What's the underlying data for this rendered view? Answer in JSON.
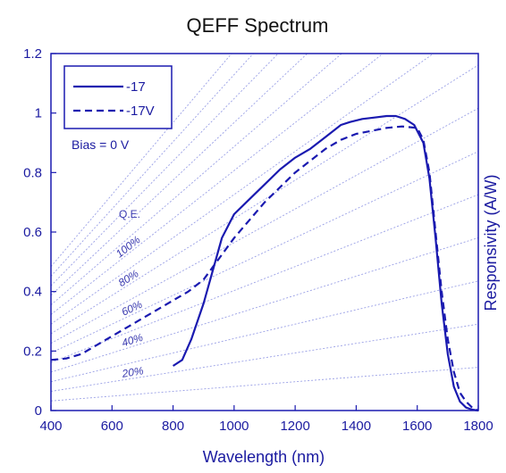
{
  "chart_data": {
    "type": "line",
    "title": "QEFF Spectrum",
    "xlabel": "Wavelength (nm)",
    "ylabel": "Responsivity (A/W)",
    "xlim": [
      400,
      1800
    ],
    "ylim": [
      0,
      1.2
    ],
    "x_ticks": [
      "400",
      "600",
      "800",
      "1000",
      "1200",
      "1400",
      "1600",
      "1800"
    ],
    "y_ticks": [
      "0",
      "0.2",
      "0.4",
      "0.6",
      "0.8",
      "1",
      "1.2"
    ],
    "legend_position": "top-left",
    "annotation": "Bias = 0 V",
    "qe_title": "Q.E.",
    "qe_lines": [
      {
        "label": "20%",
        "qe": 0.2
      },
      {
        "label": "40%",
        "qe": 0.4
      },
      {
        "label": "60%",
        "qe": 0.6
      },
      {
        "label": "80%",
        "qe": 0.8
      },
      {
        "label": "100%",
        "qe": 1.0
      }
    ],
    "series": [
      {
        "name": "-17",
        "style": "solid",
        "color": "#1a1ab0",
        "x": [
          800,
          830,
          860,
          900,
          930,
          960,
          1000,
          1050,
          1100,
          1150,
          1200,
          1250,
          1300,
          1350,
          1380,
          1420,
          1460,
          1500,
          1530,
          1560,
          1590,
          1620,
          1640,
          1660,
          1680,
          1700,
          1720,
          1740,
          1760,
          1780,
          1800
        ],
        "y": [
          0.15,
          0.17,
          0.24,
          0.36,
          0.47,
          0.58,
          0.66,
          0.71,
          0.76,
          0.81,
          0.85,
          0.88,
          0.92,
          0.96,
          0.97,
          0.98,
          0.985,
          0.99,
          0.99,
          0.98,
          0.96,
          0.9,
          0.78,
          0.58,
          0.36,
          0.19,
          0.08,
          0.03,
          0.01,
          0.003,
          0.0
        ]
      },
      {
        "name": "-17V",
        "style": "dashed",
        "color": "#1a1ab0",
        "x": [
          400,
          450,
          500,
          550,
          600,
          650,
          700,
          750,
          800,
          850,
          900,
          950,
          1000,
          1050,
          1100,
          1150,
          1200,
          1250,
          1300,
          1350,
          1400,
          1450,
          1500,
          1550,
          1600,
          1620,
          1640,
          1660,
          1680,
          1700,
          1720,
          1740,
          1760,
          1780,
          1800
        ],
        "y": [
          0.17,
          0.175,
          0.19,
          0.22,
          0.25,
          0.28,
          0.31,
          0.34,
          0.37,
          0.4,
          0.44,
          0.51,
          0.58,
          0.64,
          0.7,
          0.75,
          0.8,
          0.84,
          0.88,
          0.91,
          0.93,
          0.94,
          0.95,
          0.955,
          0.95,
          0.91,
          0.8,
          0.6,
          0.4,
          0.24,
          0.13,
          0.06,
          0.03,
          0.01,
          0.0
        ]
      }
    ]
  }
}
